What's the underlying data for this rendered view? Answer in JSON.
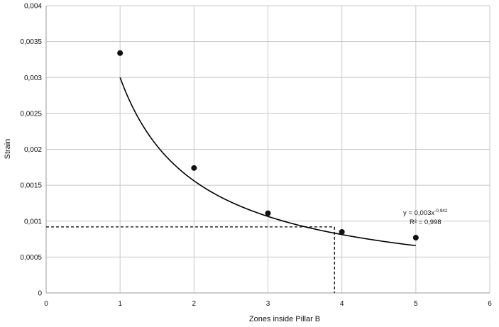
{
  "chart_data": {
    "type": "scatter",
    "xlabel": "Zones inside Pillar B",
    "ylabel": "Strain",
    "xlim": [
      0,
      6
    ],
    "ylim": [
      0,
      0.004
    ],
    "x_ticks": [
      "0",
      "1",
      "2",
      "3",
      "4",
      "5",
      "6"
    ],
    "y_ticks": [
      "0",
      "0,0005",
      "0,001",
      "0,0015",
      "0,002",
      "0,0025",
      "0,003",
      "0,0035",
      "0,004"
    ],
    "grid": true,
    "series": [
      {
        "x": [
          1,
          2,
          3,
          4,
          5
        ],
        "y": [
          0.00334,
          0.00174,
          0.00111,
          0.00085,
          0.00077
        ]
      }
    ],
    "trendline": {
      "type": "power",
      "coefficient": 0.003,
      "exponent": -0.942,
      "x_range": [
        1,
        5
      ],
      "equation_prefix": "y = 0,003x",
      "equation_exponent": "-0,942",
      "r2_label": "R² = 0,998"
    },
    "reference_point": {
      "x": 3.9,
      "y": 0.00092
    },
    "colors": {
      "grid": "#c8c8c8",
      "marker": "#111111",
      "line": "#000000"
    }
  }
}
